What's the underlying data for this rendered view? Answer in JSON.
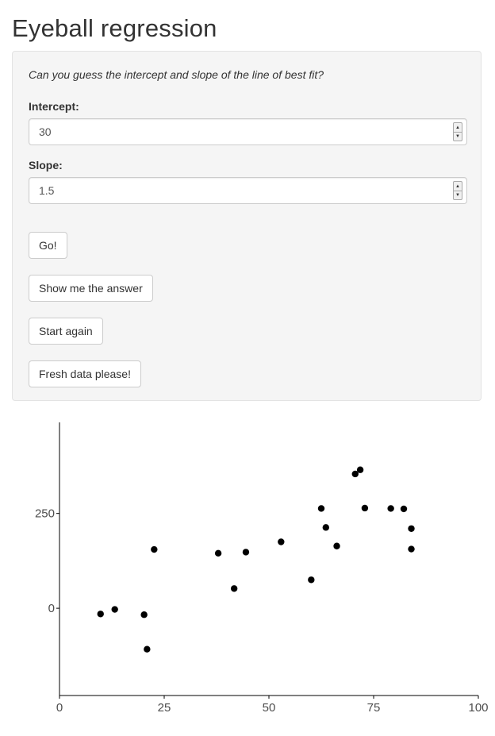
{
  "page": {
    "title": "Eyeball regression"
  },
  "panel": {
    "question": "Can you guess the intercept and slope of the line of best fit?",
    "intercept": {
      "label": "Intercept:",
      "value": "30"
    },
    "slope": {
      "label": "Slope:",
      "value": "1.5"
    },
    "buttons": {
      "go": "Go!",
      "show_answer": "Show me the answer",
      "start_again": "Start again",
      "fresh_data": "Fresh data please!"
    }
  },
  "chart_data": {
    "type": "scatter",
    "title": "",
    "xlabel": "",
    "ylabel": "",
    "xlim": [
      0,
      100
    ],
    "ylim": [
      -230,
      490
    ],
    "x_ticks": [
      0,
      25,
      50,
      75,
      100
    ],
    "x_tick_labels": [
      "0",
      "25",
      "50",
      "75",
      "100"
    ],
    "y_ticks": [
      0,
      250
    ],
    "y_tick_labels": [
      "0",
      "250"
    ],
    "grid": false,
    "points": [
      {
        "x": 9.8,
        "y": -15
      },
      {
        "x": 13.2,
        "y": -3
      },
      {
        "x": 20.2,
        "y": -17
      },
      {
        "x": 20.9,
        "y": -108
      },
      {
        "x": 22.6,
        "y": 155
      },
      {
        "x": 37.9,
        "y": 145
      },
      {
        "x": 41.7,
        "y": 52
      },
      {
        "x": 44.5,
        "y": 148
      },
      {
        "x": 52.9,
        "y": 175
      },
      {
        "x": 60.1,
        "y": 75
      },
      {
        "x": 62.5,
        "y": 263
      },
      {
        "x": 63.6,
        "y": 213
      },
      {
        "x": 66.2,
        "y": 164
      },
      {
        "x": 70.6,
        "y": 354
      },
      {
        "x": 71.8,
        "y": 365
      },
      {
        "x": 72.9,
        "y": 264
      },
      {
        "x": 79.1,
        "y": 263
      },
      {
        "x": 82.2,
        "y": 262
      },
      {
        "x": 84.0,
        "y": 210
      },
      {
        "x": 84.0,
        "y": 156
      }
    ],
    "marker_color": "#000000"
  }
}
